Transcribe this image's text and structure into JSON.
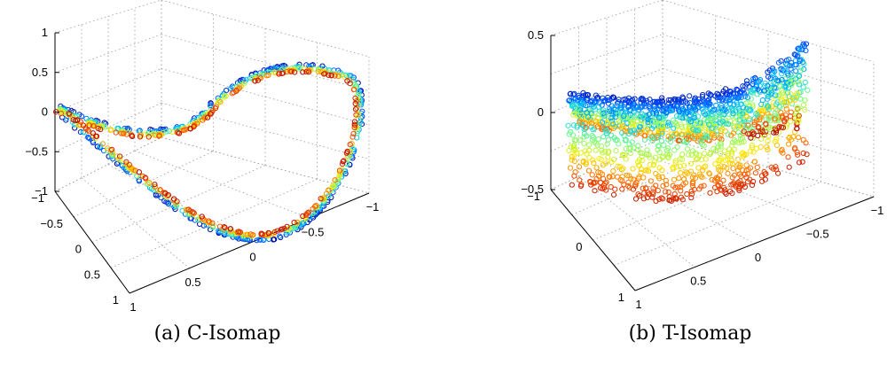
{
  "chart_data": [
    {
      "type": "scatter",
      "projection": "3d",
      "caption": "(a) C-Isomap",
      "title": "",
      "xlabel": "",
      "ylabel": "",
      "zlabel": "",
      "grid": true,
      "xlim": [
        -1,
        1
      ],
      "ylim": [
        -1,
        1
      ],
      "zlim": [
        -1,
        1
      ],
      "x_ticks": [
        "-1",
        "-0.5",
        "0",
        "0.5",
        "1"
      ],
      "y_ticks": [
        "-1",
        "-0.5",
        "0",
        "0.5",
        "1"
      ],
      "z_ticks": [
        "-1",
        "-0.5",
        "0",
        "0.5",
        "1"
      ],
      "colormap": [
        "#00008f",
        "#0050ff",
        "#00c8ff",
        "#7dff7a",
        "#ffea00",
        "#ff5a00",
        "#b00000"
      ],
      "shape": "thin figure-eight band",
      "points": 800
    },
    {
      "type": "scatter",
      "projection": "3d",
      "caption": "(b) T-Isomap",
      "title": "",
      "xlabel": "",
      "ylabel": "",
      "zlabel": "",
      "grid": true,
      "xlim": [
        -1,
        1
      ],
      "ylim": [
        -1,
        1
      ],
      "zlim": [
        -0.5,
        0.5
      ],
      "x_ticks": [
        "-1",
        "-0.5",
        "0",
        "0.5",
        "1"
      ],
      "y_ticks": [
        "-1",
        "0",
        "1"
      ],
      "z_ticks": [
        "-0.5",
        "0",
        "0.5"
      ],
      "colormap": [
        "#00008f",
        "#0050ff",
        "#00c8ff",
        "#7dff7a",
        "#ffea00",
        "#ff5a00",
        "#b00000"
      ],
      "shape": "wide twisted band",
      "points": 1600
    }
  ]
}
